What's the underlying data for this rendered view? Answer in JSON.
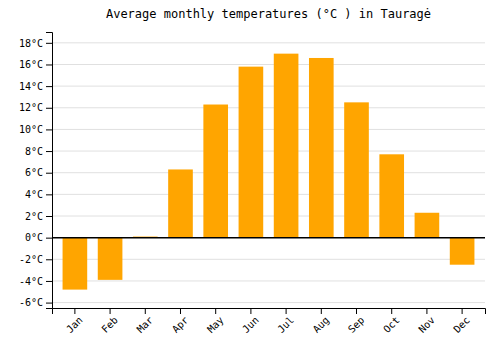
{
  "chart_data": {
    "type": "bar",
    "title": "Average monthly temperatures (°C ) in Tauragė",
    "categories": [
      "Jan",
      "Feb",
      "Mar",
      "Apr",
      "May",
      "Jun",
      "Jul",
      "Aug",
      "Sep",
      "Oct",
      "Nov",
      "Dec"
    ],
    "values": [
      -4.8,
      -3.9,
      0.1,
      6.3,
      12.3,
      15.8,
      17.0,
      16.6,
      12.5,
      7.7,
      2.3,
      -2.5
    ],
    "color": "#FFA500",
    "ylim": [
      -6.5,
      19
    ],
    "yticks": [
      {
        "value": -6,
        "label": "-6°C"
      },
      {
        "value": -4,
        "label": "-4°C"
      },
      {
        "value": -2,
        "label": "-2°C"
      },
      {
        "value": 0,
        "label": "0°C"
      },
      {
        "value": 2,
        "label": "2°C"
      },
      {
        "value": 4,
        "label": "4°C"
      },
      {
        "value": 6,
        "label": "6°C"
      },
      {
        "value": 8,
        "label": "8°C"
      },
      {
        "value": 10,
        "label": "10°C"
      },
      {
        "value": 12,
        "label": "12°C"
      },
      {
        "value": 14,
        "label": "14°C"
      },
      {
        "value": 16,
        "label": "16°C"
      },
      {
        "value": 18,
        "label": "18°C"
      }
    ],
    "grid": true
  }
}
